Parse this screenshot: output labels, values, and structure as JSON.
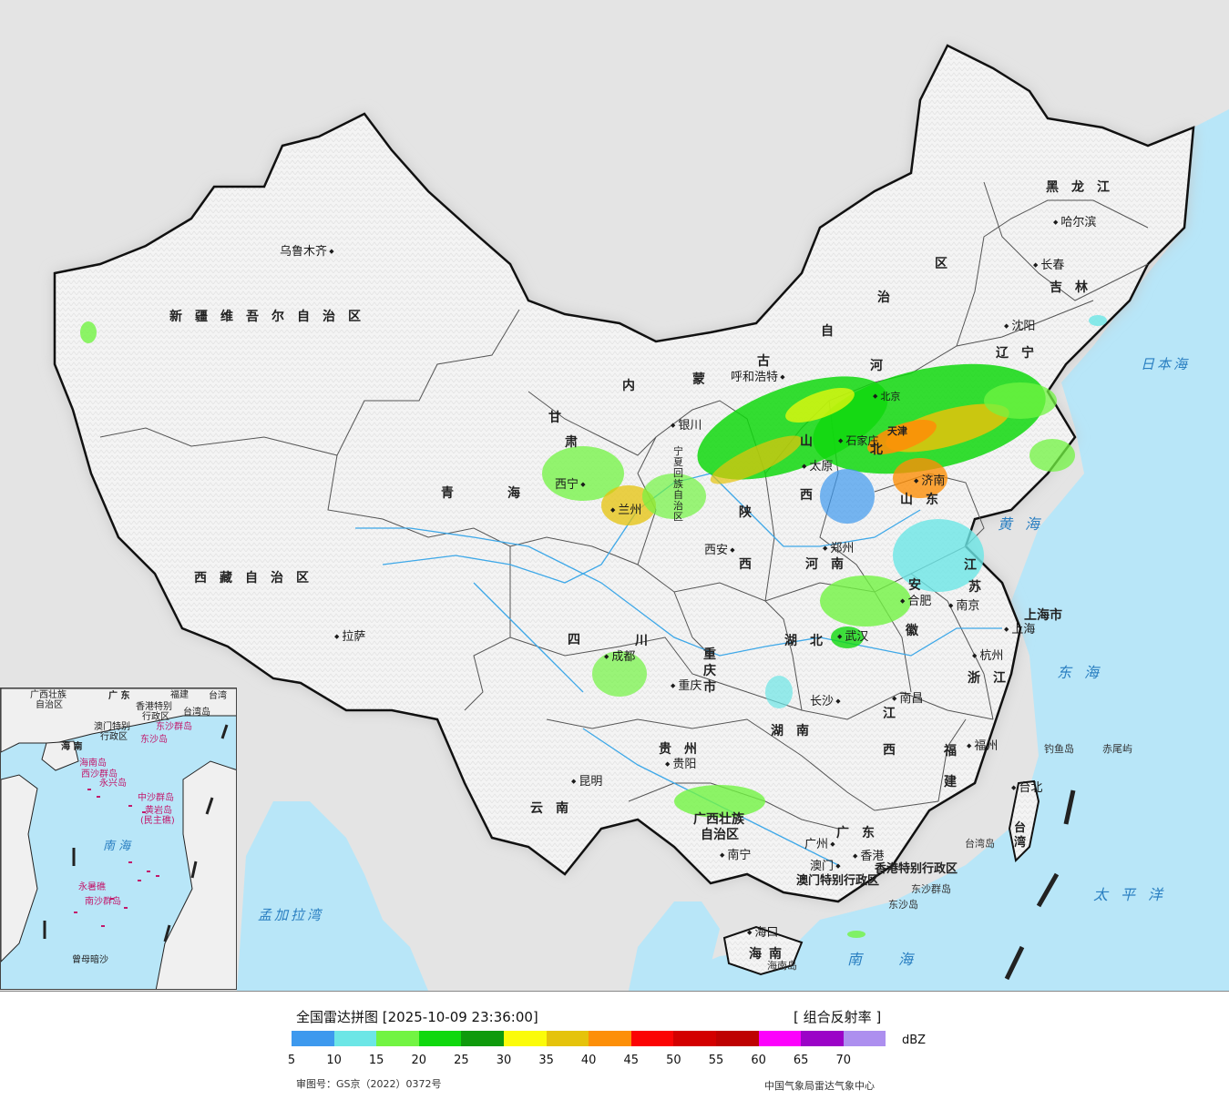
{
  "legend": {
    "title": "全国雷达拼图 [2025-10-09 23:36:00]",
    "product": "[ 组合反射率 ]",
    "unit": "dBZ",
    "ticks": [
      "5",
      "10",
      "15",
      "20",
      "25",
      "30",
      "35",
      "40",
      "45",
      "50",
      "55",
      "60",
      "65",
      "70"
    ],
    "colors": [
      "#3d99ee",
      "#6ce6e6",
      "#72f442",
      "#10d80e",
      "#0f9a0c",
      "#fbfb0a",
      "#e5c30b",
      "#fd8f08",
      "#fb0404",
      "#d30000",
      "#be0202",
      "#fc01fc",
      "#9b03c7",
      "#ad8fef"
    ],
    "approval": "审图号：GS京（2022）0372号",
    "agency": "中国气象局雷达气象中心"
  },
  "map": {
    "provinces": [
      {
        "id": "xinjiang",
        "text": "新疆维吾尔自治区"
      },
      {
        "id": "xizang",
        "text": "西藏自治区"
      },
      {
        "id": "qinghai-qing",
        "text": "青"
      },
      {
        "id": "qinghai-hai",
        "text": "海"
      },
      {
        "id": "gansu-gan",
        "text": "甘"
      },
      {
        "id": "gansu-su",
        "text": "肃"
      },
      {
        "id": "sichuan-si",
        "text": "四"
      },
      {
        "id": "sichuan-chuan",
        "text": "川"
      },
      {
        "id": "yunnan",
        "text": "云南"
      },
      {
        "id": "neimenggu-nei",
        "text": "内"
      },
      {
        "id": "neimenggu-meng",
        "text": "蒙"
      },
      {
        "id": "neimenggu-gu",
        "text": "古"
      },
      {
        "id": "neimenggu-zi",
        "text": "自"
      },
      {
        "id": "neimenggu-zhi",
        "text": "治"
      },
      {
        "id": "neimenggu-qu",
        "text": "区"
      },
      {
        "id": "heilongjiang",
        "text": "黑龙江"
      },
      {
        "id": "jilin",
        "text": "吉林"
      },
      {
        "id": "liaoning",
        "text": "辽宁"
      },
      {
        "id": "hebei-he",
        "text": "河"
      },
      {
        "id": "hebei-bei",
        "text": "北"
      },
      {
        "id": "shanxi-shan",
        "text": "山"
      },
      {
        "id": "shanxi-xi",
        "text": "西"
      },
      {
        "id": "shaanxi-shan",
        "text": "陕"
      },
      {
        "id": "shaanxi-xi",
        "text": "西"
      },
      {
        "id": "ningxia",
        "text": "宁夏回族自治区"
      },
      {
        "id": "shandong",
        "text": "山东"
      },
      {
        "id": "henan",
        "text": "河南"
      },
      {
        "id": "jiangsu-jiang",
        "text": "江"
      },
      {
        "id": "jiangsu-su",
        "text": "苏"
      },
      {
        "id": "anhui-an",
        "text": "安"
      },
      {
        "id": "anhui-hui",
        "text": "徽"
      },
      {
        "id": "hubei",
        "text": "湖北"
      },
      {
        "id": "chongqing",
        "text": "重庆市"
      },
      {
        "id": "guizhou",
        "text": "贵州"
      },
      {
        "id": "hunan",
        "text": "湖南"
      },
      {
        "id": "jiangxi-jiang",
        "text": "江"
      },
      {
        "id": "jiangxi-xi",
        "text": "西"
      },
      {
        "id": "zhejiang",
        "text": "浙江"
      },
      {
        "id": "fujian-fu",
        "text": "福"
      },
      {
        "id": "fujian-jian",
        "text": "建"
      },
      {
        "id": "guangxi-1",
        "text": "广西壮族"
      },
      {
        "id": "guangxi-2",
        "text": "自治区"
      },
      {
        "id": "guangdong",
        "text": "广东"
      },
      {
        "id": "hainan",
        "text": "海南"
      },
      {
        "id": "taiwan",
        "text": "台湾"
      },
      {
        "id": "shanghai",
        "text": "上海市"
      },
      {
        "id": "tianjin",
        "text": "天津"
      },
      {
        "id": "hongkong",
        "text": "香港特别行政区"
      },
      {
        "id": "macau",
        "text": "澳门特别行政区"
      }
    ],
    "cities": [
      {
        "id": "urumqi",
        "text": "乌鲁木齐"
      },
      {
        "id": "lhasa",
        "text": "拉萨"
      },
      {
        "id": "xining",
        "text": "西宁"
      },
      {
        "id": "lanzhou",
        "text": "兰州"
      },
      {
        "id": "yinchuan",
        "text": "银川"
      },
      {
        "id": "hohhot",
        "text": "呼和浩特"
      },
      {
        "id": "beijing",
        "text": "北京"
      },
      {
        "id": "shijiazhuang",
        "text": "石家庄"
      },
      {
        "id": "taiyuan",
        "text": "太原"
      },
      {
        "id": "jinan",
        "text": "济南"
      },
      {
        "id": "zhengzhou",
        "text": "郑州"
      },
      {
        "id": "xian",
        "text": "西安"
      },
      {
        "id": "chengdu",
        "text": "成都"
      },
      {
        "id": "chongqing-c",
        "text": "重庆"
      },
      {
        "id": "wuhan",
        "text": "武汉"
      },
      {
        "id": "hefei",
        "text": "合肥"
      },
      {
        "id": "nanjing",
        "text": "南京"
      },
      {
        "id": "shanghai-c",
        "text": "上海"
      },
      {
        "id": "hangzhou",
        "text": "杭州"
      },
      {
        "id": "nanchang",
        "text": "南昌"
      },
      {
        "id": "changsha",
        "text": "长沙"
      },
      {
        "id": "guiyang",
        "text": "贵阳"
      },
      {
        "id": "kunming",
        "text": "昆明"
      },
      {
        "id": "nanning",
        "text": "南宁"
      },
      {
        "id": "guangzhou",
        "text": "广州"
      },
      {
        "id": "macau-c",
        "text": "澳门"
      },
      {
        "id": "hongkong-c",
        "text": "香港"
      },
      {
        "id": "fuzhou",
        "text": "福州"
      },
      {
        "id": "taipei",
        "text": "台北"
      },
      {
        "id": "haikou",
        "text": "海口"
      },
      {
        "id": "shenyang",
        "text": "沈阳"
      },
      {
        "id": "changchun",
        "text": "长春"
      },
      {
        "id": "harbin",
        "text": "哈尔滨"
      }
    ],
    "seas": [
      {
        "id": "sea-japan",
        "text": "日本海"
      },
      {
        "id": "sea-yellow",
        "text": "黄海"
      },
      {
        "id": "sea-east",
        "text": "东海"
      },
      {
        "id": "sea-pacific",
        "text": "太平洋"
      },
      {
        "id": "sea-south",
        "text": "南海"
      },
      {
        "id": "sea-bengal",
        "text": "孟加拉湾"
      }
    ],
    "islands": [
      {
        "id": "diaoyu",
        "text": "钓鱼岛"
      },
      {
        "id": "chiwei",
        "text": "赤尾屿"
      },
      {
        "id": "taiwan-island",
        "text": "台湾岛"
      },
      {
        "id": "dongsha",
        "text": "东沙群岛"
      },
      {
        "id": "dongsha-dao",
        "text": "东沙岛"
      },
      {
        "id": "hainan-island",
        "text": "海南岛"
      }
    ],
    "inset": {
      "labels": [
        {
          "id": "in-guangxi",
          "text": "广西壮族"
        },
        {
          "id": "in-zizhiqu",
          "text": "自治区"
        },
        {
          "id": "in-guangdong",
          "text": "广 东"
        },
        {
          "id": "in-fujian",
          "text": "福建"
        },
        {
          "id": "in-taiwan",
          "text": "台湾"
        },
        {
          "id": "in-hk",
          "text": "香港特别"
        },
        {
          "id": "in-hk2",
          "text": "行政区"
        },
        {
          "id": "in-macau",
          "text": "澳门特别"
        },
        {
          "id": "in-macau2",
          "text": "行政区"
        },
        {
          "id": "in-taiwan-dao",
          "text": "台湾岛"
        },
        {
          "id": "in-dongsha",
          "text": "东沙群岛"
        },
        {
          "id": "in-dongsha-dao",
          "text": "东沙岛"
        },
        {
          "id": "in-hainan",
          "text": "海 南"
        },
        {
          "id": "in-hainan-dao",
          "text": "海南岛"
        },
        {
          "id": "in-xisha",
          "text": "西沙群岛"
        },
        {
          "id": "in-yongxing",
          "text": "永兴岛"
        },
        {
          "id": "in-zhongsha",
          "text": "中沙群岛"
        },
        {
          "id": "in-huangyan",
          "text": "黄岩岛"
        },
        {
          "id": "in-minzhu",
          "text": "(民主礁)"
        },
        {
          "id": "in-nansha",
          "text": "南沙群岛"
        },
        {
          "id": "in-yongshu",
          "text": "永暑礁"
        },
        {
          "id": "in-zengmu",
          "text": "曾母暗沙"
        }
      ],
      "sea": "南 海"
    }
  }
}
